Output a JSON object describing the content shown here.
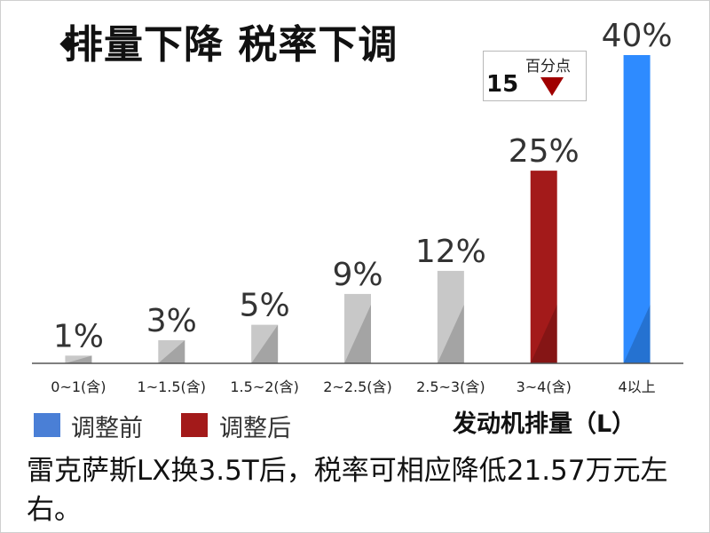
{
  "header": {
    "title": "排量下降 税率下调"
  },
  "callout": {
    "value": "15",
    "unit": "百分点",
    "arrow_color": "#a00000"
  },
  "legend": {
    "items": [
      {
        "label": "调整前",
        "color": "#4a7fd6"
      },
      {
        "label": "调整后",
        "color": "#a31a1a"
      }
    ]
  },
  "axis": {
    "xlabel": "发动机排量（L）"
  },
  "caption": {
    "text": "雷克萨斯LX换3.5T后，税率可相应降低21.57万元左右。"
  },
  "chart_data": {
    "type": "bar",
    "title": "排量下降 税率下调",
    "xlabel": "发动机排量（L）",
    "ylabel": "",
    "categories": [
      "0~1(含)",
      "1~1.5(含)",
      "1.5~2(含)",
      "2~2.5(含)",
      "2.5~3(含)",
      "3~4(含)",
      "4以上"
    ],
    "values": [
      1,
      3,
      5,
      9,
      12,
      25,
      40
    ],
    "value_labels": [
      "1%",
      "3%",
      "5%",
      "9%",
      "12%",
      "25%",
      "40%"
    ],
    "bar_colors": [
      "#c8c8c8",
      "#c8c8c8",
      "#c8c8c8",
      "#c8c8c8",
      "#c8c8c8",
      "#a31a1a",
      "#2e8bff"
    ],
    "ylim": [
      0,
      40
    ],
    "grid": false,
    "legend_position": "bottom-left"
  }
}
